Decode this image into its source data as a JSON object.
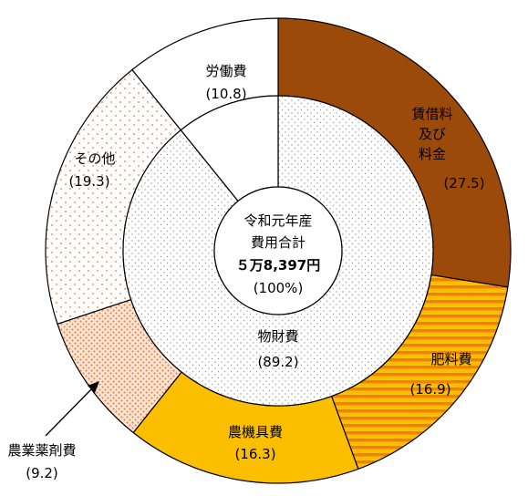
{
  "chart_data": {
    "type": "pie",
    "center": {
      "line1": "令和元年産",
      "line2": "費用合計",
      "line3": "５万8,397円",
      "line4": "(100%)"
    },
    "outer_ring": [
      {
        "name_lines": [
          "賃借料",
          "及び",
          "料金"
        ],
        "value_label": "(27.5)",
        "value": 27.5,
        "pattern": "solid",
        "color": "#9c4a0a"
      },
      {
        "name_lines": [
          "肥料費"
        ],
        "value_label": "(16.9)",
        "value": 16.9,
        "pattern": "stripes",
        "color": "#f07f0f"
      },
      {
        "name_lines": [
          "農機具費"
        ],
        "value_label": "(16.3)",
        "value": 16.3,
        "pattern": "solid",
        "color": "#fbbf00"
      },
      {
        "name_lines": [
          "農業薬剤費"
        ],
        "value_label": "(9.2)",
        "value": 9.2,
        "pattern": "dense-dots",
        "color": "#e8773a"
      },
      {
        "name_lines": [
          "その他"
        ],
        "value_label": "(19.3)",
        "value": 19.3,
        "pattern": "sparse-dots",
        "color": "#e8773a"
      },
      {
        "name_lines": [
          "労働費"
        ],
        "value_label": "(10.8)",
        "value": 10.8,
        "pattern": "none",
        "color": "#ffffff"
      }
    ],
    "inner_ring": [
      {
        "name_lines": [
          "物財費"
        ],
        "value_label": "(89.2)",
        "value": 89.2,
        "pattern": "gray-dots",
        "color": "#9a9a9a"
      },
      {
        "name_lines": [],
        "value_label": "",
        "value": 10.8,
        "pattern": "none",
        "color": "#ffffff"
      }
    ]
  }
}
